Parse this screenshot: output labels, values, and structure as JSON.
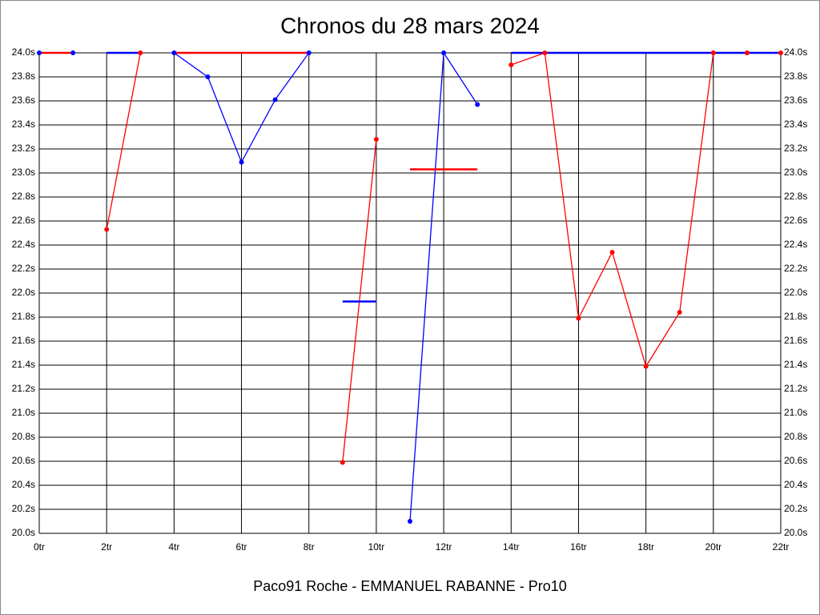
{
  "chart_data": {
    "type": "line",
    "title": "Chronos du 28 mars 2024",
    "subtitle": "Paco91 Roche - EMMANUEL RABANNE - Pro10",
    "x": [
      0,
      1,
      2,
      3,
      4,
      5,
      6,
      7,
      8,
      9,
      10,
      11,
      12,
      13,
      14,
      15,
      16,
      17,
      18,
      19,
      20,
      21,
      22
    ],
    "series": [
      {
        "color": "#ff0000",
        "markers": true,
        "values": [
          null,
          null,
          22.53,
          24.0,
          null,
          null,
          null,
          null,
          null,
          20.59,
          23.28,
          null,
          null,
          null,
          23.9,
          24.0,
          21.79,
          22.34,
          21.39,
          21.84,
          24.0,
          24.0,
          24.0
        ]
      },
      {
        "color": "#0000ff",
        "markers": true,
        "values": [
          24.0,
          24.0,
          null,
          null,
          24.0,
          23.8,
          23.09,
          23.61,
          24.0,
          null,
          null,
          20.1,
          24.0,
          23.57,
          null,
          null,
          null,
          null,
          null,
          null,
          null,
          null,
          null
        ]
      },
      {
        "color": "#ff0000",
        "markers": false,
        "values": [
          24.0,
          24.0,
          null,
          null,
          24.0,
          24.0,
          24.0,
          24.0,
          24.0,
          null,
          null,
          23.03,
          23.03,
          23.03,
          null,
          null,
          null,
          null,
          null,
          null,
          null,
          null,
          null
        ]
      },
      {
        "color": "#0000ff",
        "markers": false,
        "values": [
          null,
          null,
          24.0,
          24.0,
          null,
          null,
          null,
          null,
          null,
          21.93,
          21.93,
          null,
          null,
          null,
          24.0,
          24.0,
          24.0,
          24.0,
          24.0,
          24.0,
          24.0,
          24.0,
          24.0
        ]
      }
    ],
    "xlim": [
      0,
      22
    ],
    "xticks": [
      {
        "value": 0,
        "label": "0tr"
      },
      {
        "value": 2,
        "label": "2tr"
      },
      {
        "value": 4,
        "label": "4tr"
      },
      {
        "value": 6,
        "label": "6tr"
      },
      {
        "value": 8,
        "label": "8tr"
      },
      {
        "value": 10,
        "label": "10tr"
      },
      {
        "value": 12,
        "label": "12tr"
      },
      {
        "value": 14,
        "label": "14tr"
      },
      {
        "value": 16,
        "label": "16tr"
      },
      {
        "value": 18,
        "label": "18tr"
      },
      {
        "value": 20,
        "label": "20tr"
      },
      {
        "value": 22,
        "label": "22tr"
      }
    ],
    "ylim": [
      20.0,
      24.0
    ],
    "yticks": [
      {
        "value": 20.0,
        "label": "20.0s"
      },
      {
        "value": 20.2,
        "label": "20.2s"
      },
      {
        "value": 20.4,
        "label": "20.4s"
      },
      {
        "value": 20.6,
        "label": "20.6s"
      },
      {
        "value": 20.8,
        "label": "20.8s"
      },
      {
        "value": 21.0,
        "label": "21.0s"
      },
      {
        "value": 21.2,
        "label": "21.2s"
      },
      {
        "value": 21.4,
        "label": "21.4s"
      },
      {
        "value": 21.6,
        "label": "21.6s"
      },
      {
        "value": 21.8,
        "label": "21.8s"
      },
      {
        "value": 22.0,
        "label": "22.0s"
      },
      {
        "value": 22.2,
        "label": "22.2s"
      },
      {
        "value": 22.4,
        "label": "22.4s"
      },
      {
        "value": 22.6,
        "label": "22.6s"
      },
      {
        "value": 22.8,
        "label": "22.8s"
      },
      {
        "value": 23.0,
        "label": "23.0s"
      },
      {
        "value": 23.2,
        "label": "23.2s"
      },
      {
        "value": 23.4,
        "label": "23.4s"
      },
      {
        "value": 23.6,
        "label": "23.6s"
      },
      {
        "value": 23.8,
        "label": "23.8s"
      },
      {
        "value": 24.0,
        "label": "24.0s"
      }
    ],
    "grid": true
  }
}
